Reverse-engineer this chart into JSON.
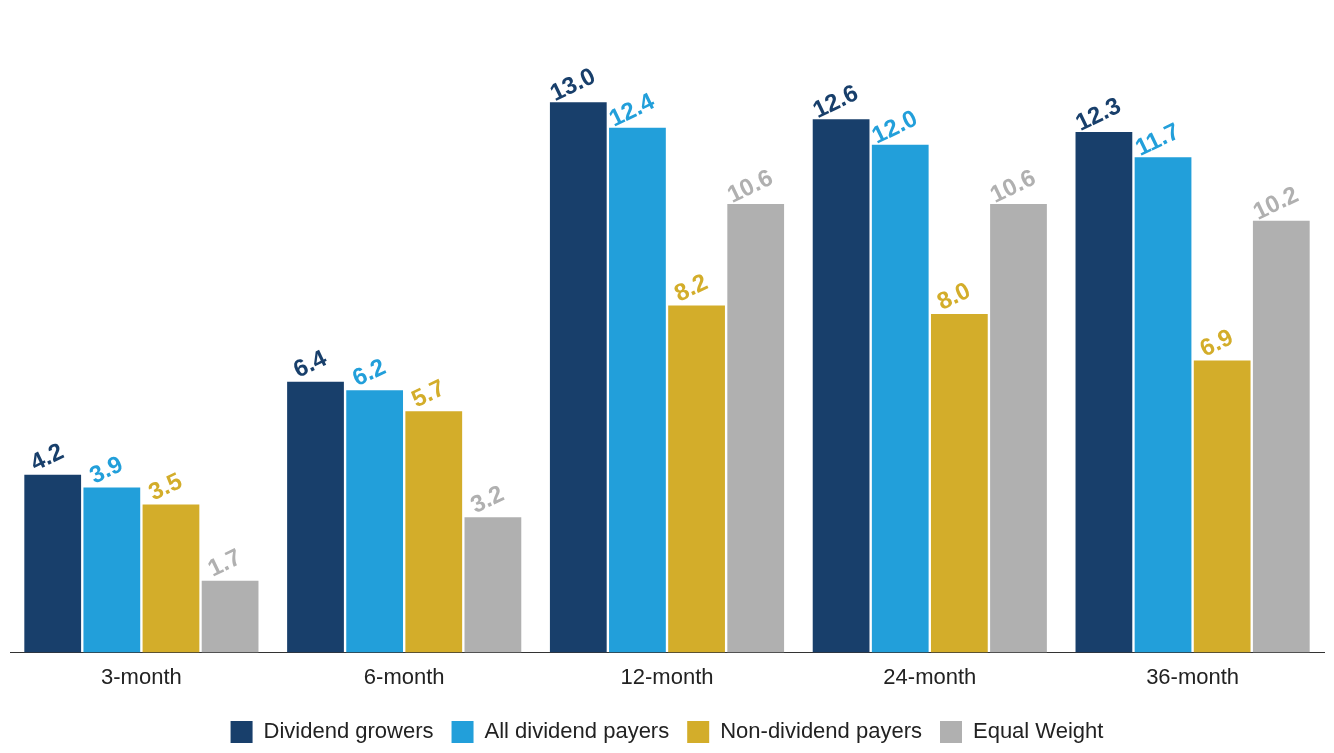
{
  "chart_data": {
    "type": "bar",
    "categories": [
      "3-month",
      "6-month",
      "12-month",
      "24-month",
      "36-month"
    ],
    "series": [
      {
        "name": "Dividend growers",
        "color": "#183f6b",
        "values": [
          4.2,
          6.4,
          13.0,
          12.6,
          12.3
        ],
        "value_labels": [
          "4.2",
          "6.4",
          "13.0",
          "12.6",
          "12.3"
        ]
      },
      {
        "name": "All dividend payers",
        "color": "#229fda",
        "values": [
          3.9,
          6.2,
          12.4,
          12.0,
          11.7
        ],
        "value_labels": [
          "3.9",
          "6.2",
          "12.4",
          "12.0",
          "11.7"
        ]
      },
      {
        "name": "Non-dividend payers",
        "color": "#d3ad2a",
        "values": [
          3.5,
          5.7,
          8.2,
          8.0,
          6.9
        ],
        "value_labels": [
          "3.5",
          "5.7",
          "8.2",
          "8.0",
          "6.9"
        ]
      },
      {
        "name": "Equal Weight",
        "color": "#b0b0b0",
        "values": [
          1.7,
          3.2,
          10.6,
          10.6,
          10.2
        ],
        "value_labels": [
          "1.7",
          "3.2",
          "10.6",
          "10.6",
          "10.2"
        ]
      }
    ],
    "grid": false,
    "legend": "bottom"
  }
}
